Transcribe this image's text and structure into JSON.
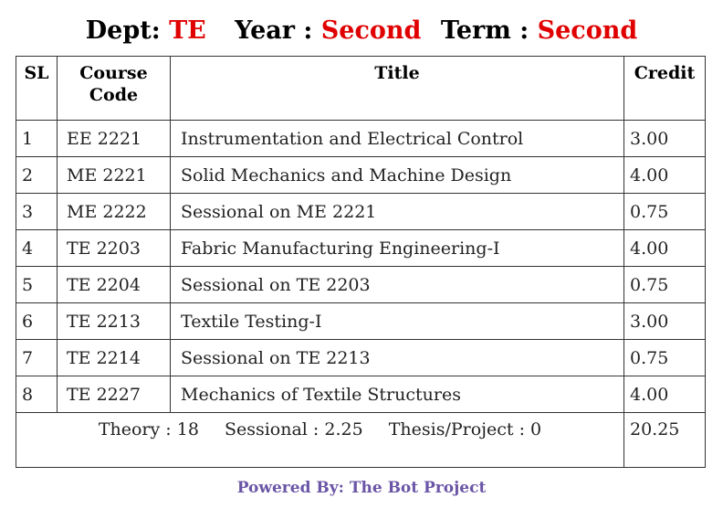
{
  "header": {
    "dept_label": "Dept:",
    "dept_value": "TE",
    "year_label": "Year :",
    "year_value": "Second",
    "term_label": "Term :",
    "term_value": "Second"
  },
  "table": {
    "columns": [
      "SL",
      "Course Code",
      "Title",
      "Credit"
    ],
    "rows": [
      {
        "sl": "1",
        "code": "EE 2221",
        "title": "Instrumentation and Electrical Control",
        "credit": "3.00"
      },
      {
        "sl": "2",
        "code": "ME 2221",
        "title": "Solid Mechanics and Machine Design",
        "credit": "4.00"
      },
      {
        "sl": "3",
        "code": "ME 2222",
        "title": "Sessional on ME 2221",
        "credit": "0.75"
      },
      {
        "sl": "4",
        "code": "TE 2203",
        "title": "Fabric Manufacturing Engineering-I",
        "credit": "4.00"
      },
      {
        "sl": "5",
        "code": "TE 2204",
        "title": "Sessional on TE 2203",
        "credit": "0.75"
      },
      {
        "sl": "6",
        "code": "TE 2213",
        "title": "Textile Testing-I",
        "credit": "3.00"
      },
      {
        "sl": "7",
        "code": "TE 2214",
        "title": "Sessional on TE 2213",
        "credit": "0.75"
      },
      {
        "sl": "8",
        "code": "TE 2227",
        "title": "Mechanics of Textile Structures",
        "credit": "4.00"
      }
    ],
    "summary": {
      "theory": "Theory : 18",
      "sessional": "Sessional : 2.25",
      "thesis": "Thesis/Project : 0",
      "total_credit": "20.25"
    }
  },
  "footer": {
    "text": "Powered By: The Bot Project"
  },
  "colors": {
    "value_red": "#e00000",
    "footer_purple": "#6a55a6",
    "border": "#333333"
  }
}
